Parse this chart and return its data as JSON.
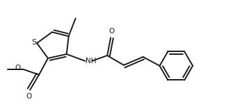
{
  "line_color": "#1a1a1a",
  "bg_color": "#ffffff",
  "line_width": 1.4,
  "font_size": 7.5,
  "figsize": [
    3.61,
    1.6
  ],
  "dpi": 100,
  "xlim": [
    0.0,
    3.61
  ],
  "ylim": [
    0.0,
    1.6
  ]
}
